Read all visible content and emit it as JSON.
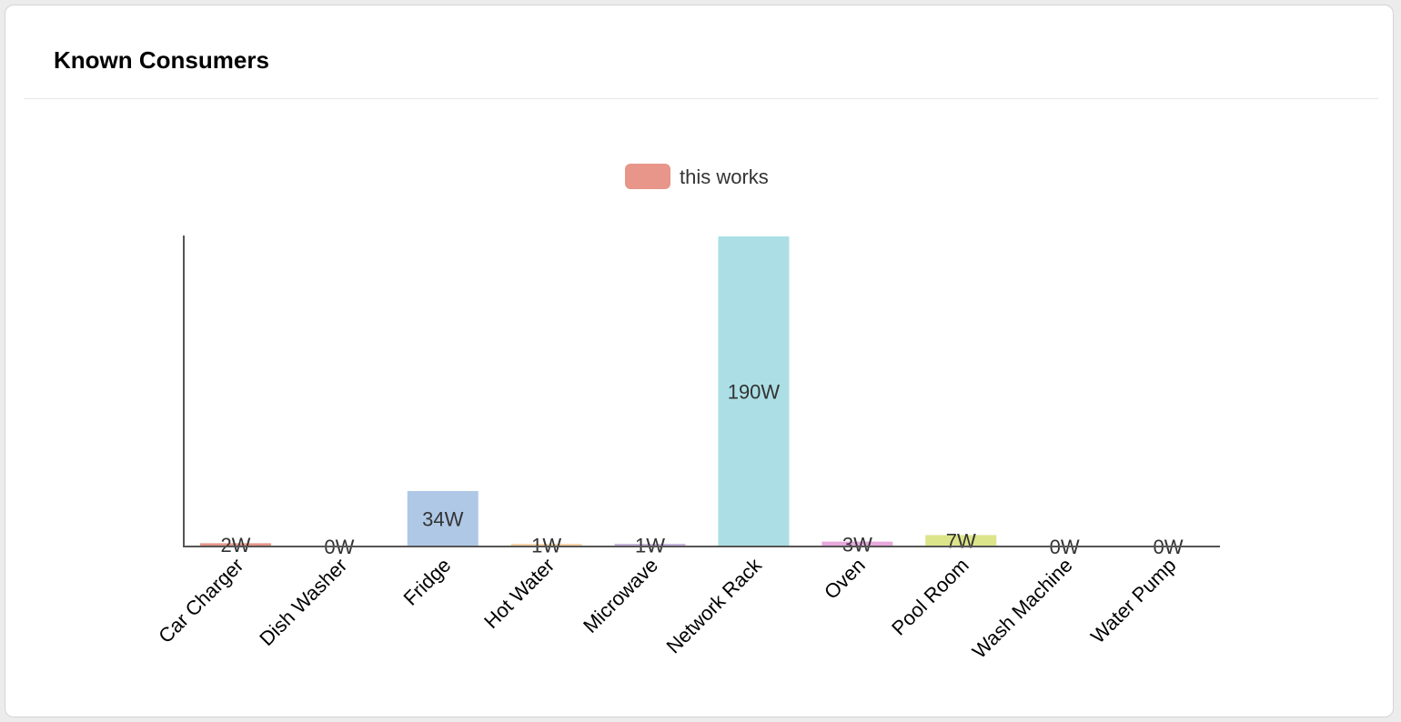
{
  "card": {
    "title": "Known Consumers"
  },
  "chart_data": {
    "type": "bar",
    "legend": {
      "label": "this works",
      "color": "#e8958a",
      "placement": "top-center"
    },
    "categories": [
      "Car Charger",
      "Dish Washer",
      "Fridge",
      "Hot Water",
      "Microwave",
      "Network Rack",
      "Oven",
      "Pool Room",
      "Wash Machine",
      "Water Pump"
    ],
    "values": [
      2,
      0,
      34,
      1,
      1,
      190,
      3,
      7,
      0,
      0
    ],
    "labels": [
      "2W",
      "0W",
      "34W",
      "1W",
      "1W",
      "190W",
      "3W",
      "7W",
      "0W",
      "0W"
    ],
    "colors": [
      "#e8958a",
      "#f5cba7",
      "#afc8e6",
      "#f7d3a8",
      "#c9b6dd",
      "#abdfe5",
      "#e8a8dd",
      "#dde58a",
      "#cfe2a8",
      "#e5c7b0"
    ],
    "ylim": [
      0,
      190
    ],
    "grid": false,
    "xlabel": "",
    "ylabel": ""
  }
}
